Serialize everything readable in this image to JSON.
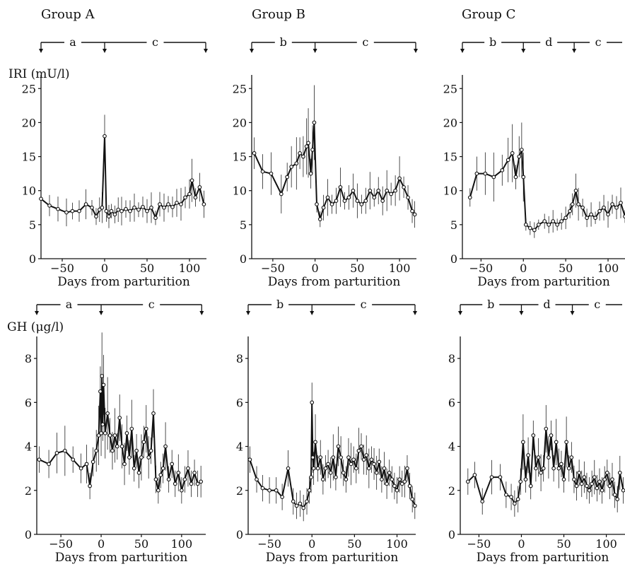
{
  "figure": {
    "x_axis_label": "Days from parturition",
    "y_labels": {
      "iri": "IRI  (mU/l)",
      "gh": "GH  (μg/l)"
    }
  },
  "chart_data": [
    {
      "id": "A-IRI",
      "type": "line",
      "group": "Group A",
      "hormone": "IRI",
      "title": "Group A",
      "period_bar": {
        "labels": [
          "a",
          "c"
        ],
        "arrows_at_days": [
          -75,
          0,
          120
        ]
      },
      "xlabel": "Days from parturition",
      "ylabel": "IRI  (mU/l)",
      "xlim": [
        -75,
        120
      ],
      "ylim": [
        0,
        27
      ],
      "x_ticks": [
        -50,
        0,
        50,
        100
      ],
      "y_ticks": [
        0,
        5,
        10,
        15,
        20,
        25
      ],
      "series": [
        {
          "x": [
            -75,
            -65,
            -55,
            -45,
            -38,
            -30,
            -22,
            -15,
            -10,
            -6,
            -3,
            0,
            2,
            5,
            8,
            12,
            16,
            20,
            25,
            30,
            35,
            40,
            45,
            50,
            55,
            60,
            65,
            70,
            75,
            80,
            85,
            90,
            95,
            100,
            103,
            107,
            112,
            117
          ],
          "y": [
            8.8,
            7.8,
            7.3,
            6.8,
            7,
            7,
            8,
            7.5,
            6.2,
            7.2,
            7.5,
            18,
            7,
            6.2,
            7,
            6.5,
            7.2,
            7,
            7.3,
            7,
            7.5,
            7.2,
            7.6,
            7,
            7.5,
            6,
            8,
            7.5,
            8,
            7.6,
            8.2,
            8,
            9,
            9.5,
            11.5,
            9,
            10.5,
            8
          ]
        }
      ]
    },
    {
      "id": "B-IRI",
      "type": "line",
      "group": "Group B",
      "hormone": "IRI",
      "title": "Group B",
      "period_bar": {
        "labels": [
          "b",
          "c"
        ],
        "arrows_at_days": [
          -75,
          0,
          120
        ]
      },
      "xlabel": "Days from parturition",
      "ylabel": "",
      "xlim": [
        -75,
        120
      ],
      "ylim": [
        0,
        27
      ],
      "x_ticks": [
        -50,
        0,
        50,
        100
      ],
      "y_ticks": [
        0,
        5,
        10,
        15,
        20,
        25
      ],
      "series": [
        {
          "x": [
            -72,
            -62,
            -52,
            -40,
            -33,
            -28,
            -22,
            -18,
            -14,
            -10,
            -8,
            -5,
            -3,
            -1,
            2,
            6,
            10,
            15,
            20,
            25,
            30,
            35,
            40,
            45,
            50,
            55,
            60,
            65,
            70,
            75,
            80,
            85,
            90,
            95,
            100,
            105,
            110,
            115,
            118
          ],
          "y": [
            15.5,
            12.8,
            12.5,
            9.5,
            12,
            13.5,
            14,
            15.5,
            15,
            16.5,
            17,
            12.5,
            16,
            20,
            8,
            5.8,
            7.5,
            9,
            8,
            8.5,
            10.5,
            8.5,
            9,
            10,
            8.5,
            8,
            8.5,
            10,
            9,
            10,
            8.5,
            10,
            9.5,
            10,
            11.8,
            10.5,
            9,
            7,
            6.5
          ]
        }
      ]
    },
    {
      "id": "C-IRI",
      "type": "line",
      "group": "Group C",
      "hormone": "IRI",
      "title": "Group C",
      "period_bar": {
        "labels": [
          "b",
          "d",
          "c"
        ],
        "arrows_at_days": [
          -72,
          0,
          60
        ]
      },
      "xlabel": "Days from parturition",
      "ylabel": "",
      "xlim": [
        -72,
        120
      ],
      "ylim": [
        0,
        27
      ],
      "x_ticks": [
        -50,
        0,
        50,
        100
      ],
      "y_ticks": [
        0,
        5,
        10,
        15,
        20,
        25
      ],
      "series": [
        {
          "x": [
            -63,
            -55,
            -45,
            -35,
            -25,
            -18,
            -13,
            -9,
            -5,
            -2,
            0,
            3,
            8,
            13,
            18,
            25,
            30,
            35,
            40,
            45,
            50,
            55,
            58,
            62,
            65,
            70,
            75,
            80,
            85,
            90,
            95,
            100,
            105,
            110,
            115,
            120
          ],
          "y": [
            9,
            12.5,
            12.5,
            12,
            13,
            14.5,
            15.5,
            12,
            15,
            16,
            12,
            5,
            4.5,
            4.2,
            5,
            5.5,
            5,
            5.5,
            5,
            5.5,
            6,
            7,
            8,
            10,
            8,
            7.5,
            6,
            6.5,
            6,
            7,
            7.5,
            6.5,
            8,
            7.5,
            8.2,
            6.2
          ]
        }
      ]
    },
    {
      "id": "A-GH",
      "type": "line",
      "group": "Group A",
      "hormone": "GH",
      "title": "",
      "period_bar": {
        "labels": [
          "a",
          "c"
        ],
        "arrows_at_days": [
          -80,
          0,
          125
        ]
      },
      "xlabel": "Days from parturition",
      "ylabel": "GH  (μg/l)",
      "xlim": [
        -80,
        130
      ],
      "ylim": [
        0,
        9
      ],
      "x_ticks": [
        -50,
        0,
        50,
        100
      ],
      "y_ticks": [
        0,
        2,
        4,
        6,
        8
      ],
      "series": [
        {
          "x": [
            -77,
            -65,
            -55,
            -45,
            -35,
            -25,
            -18,
            -14,
            -10,
            -6,
            -3,
            -1,
            0,
            1,
            2,
            3,
            5,
            8,
            11,
            14,
            17,
            20,
            23,
            26,
            29,
            32,
            35,
            38,
            41,
            44,
            47,
            50,
            53,
            56,
            59,
            62,
            65,
            68,
            71,
            74,
            77,
            80,
            84,
            88,
            92,
            96,
            100,
            104,
            108,
            112,
            116,
            120,
            124
          ],
          "y": [
            3.4,
            3.2,
            3.7,
            3.8,
            3.4,
            3,
            3.2,
            2.2,
            3.3,
            3.8,
            4.5,
            6.5,
            4.6,
            7.2,
            5,
            6.8,
            4.6,
            5.5,
            4.5,
            3.8,
            4.5,
            4,
            5.3,
            4,
            3.2,
            4.6,
            3.5,
            4.8,
            3,
            3.8,
            2.8,
            3.5,
            4.2,
            4.8,
            3.5,
            3.8,
            5.5,
            2.5,
            2,
            2.7,
            3,
            4,
            2.5,
            3.2,
            2.3,
            2.8,
            2,
            2.5,
            3,
            2.3,
            2.8,
            2.3,
            2.4
          ]
        }
      ]
    },
    {
      "id": "B-GH",
      "type": "line",
      "group": "Group B",
      "hormone": "GH",
      "title": "",
      "period_bar": {
        "labels": [
          "b",
          "c"
        ],
        "arrows_at_days": [
          -75,
          0,
          122
        ]
      },
      "xlabel": "Days from parturition",
      "ylabel": "",
      "xlim": [
        -75,
        122
      ],
      "ylim": [
        0,
        9
      ],
      "x_ticks": [
        -50,
        0,
        50,
        100
      ],
      "y_ticks": [
        0,
        2,
        4,
        6,
        8
      ],
      "series": [
        {
          "x": [
            -73,
            -65,
            -58,
            -50,
            -42,
            -35,
            -28,
            -22,
            -18,
            -14,
            -10,
            -6,
            -3,
            -1,
            0,
            1,
            2,
            4,
            7,
            10,
            13,
            16,
            19,
            22,
            25,
            28,
            31,
            34,
            37,
            40,
            43,
            46,
            49,
            52,
            55,
            58,
            61,
            64,
            67,
            70,
            73,
            76,
            79,
            82,
            85,
            88,
            91,
            94,
            97,
            100,
            103,
            106,
            109,
            112,
            115,
            118,
            121
          ],
          "y": [
            3.4,
            2.5,
            2.1,
            2,
            2,
            1.7,
            3,
            1.5,
            1.3,
            1.4,
            1.2,
            1.5,
            2,
            2.6,
            6,
            3.5,
            3,
            4.2,
            3,
            3.5,
            2.5,
            3,
            3.2,
            2.8,
            3.5,
            2.6,
            4,
            3.5,
            2.8,
            2.5,
            3.5,
            3.2,
            3.4,
            3,
            3.8,
            4,
            3.4,
            3.6,
            3,
            3.4,
            3.2,
            2.8,
            3.3,
            2.5,
            3,
            2.3,
            2.8,
            2.5,
            2.2,
            2,
            2.5,
            2.3,
            2.4,
            3,
            2.2,
            1.6,
            1.3
          ]
        }
      ]
    },
    {
      "id": "C-GH",
      "type": "line",
      "group": "Group C",
      "hormone": "GH",
      "title": "",
      "period_bar": {
        "labels": [
          "b",
          "d",
          "c"
        ],
        "arrows_at_days": [
          -75,
          0,
          60
        ]
      },
      "xlabel": "Days from parturition",
      "ylabel": "",
      "xlim": [
        -72,
        122
      ],
      "ylim": [
        0,
        9
      ],
      "x_ticks": [
        -50,
        0,
        50,
        100
      ],
      "y_ticks": [
        0,
        2,
        4,
        6,
        8
      ],
      "series": [
        {
          "x": [
            -63,
            -55,
            -46,
            -35,
            -25,
            -18,
            -12,
            -8,
            -4,
            -1,
            2,
            5,
            8,
            11,
            14,
            17,
            20,
            23,
            26,
            29,
            32,
            35,
            38,
            41,
            44,
            47,
            50,
            53,
            56,
            59,
            62,
            65,
            68,
            71,
            74,
            77,
            80,
            83,
            86,
            89,
            92,
            95,
            98,
            101,
            104,
            107,
            110,
            113,
            116,
            120
          ],
          "y": [
            2.4,
            2.7,
            1.5,
            2.6,
            2.6,
            1.8,
            1.7,
            1.4,
            1.6,
            2.4,
            4.2,
            2.5,
            3.6,
            2.2,
            4.5,
            3,
            3.5,
            2.8,
            3,
            4.8,
            3.5,
            4.5,
            3,
            4.2,
            3,
            3.2,
            2.5,
            4.2,
            3,
            3.5,
            2.5,
            2.2,
            2.8,
            2.3,
            2.6,
            2.2,
            2,
            2.3,
            2.6,
            2.1,
            2.4,
            2,
            2.5,
            2.8,
            2.2,
            2.5,
            1.8,
            1.6,
            2.8,
            2
          ]
        }
      ]
    }
  ]
}
